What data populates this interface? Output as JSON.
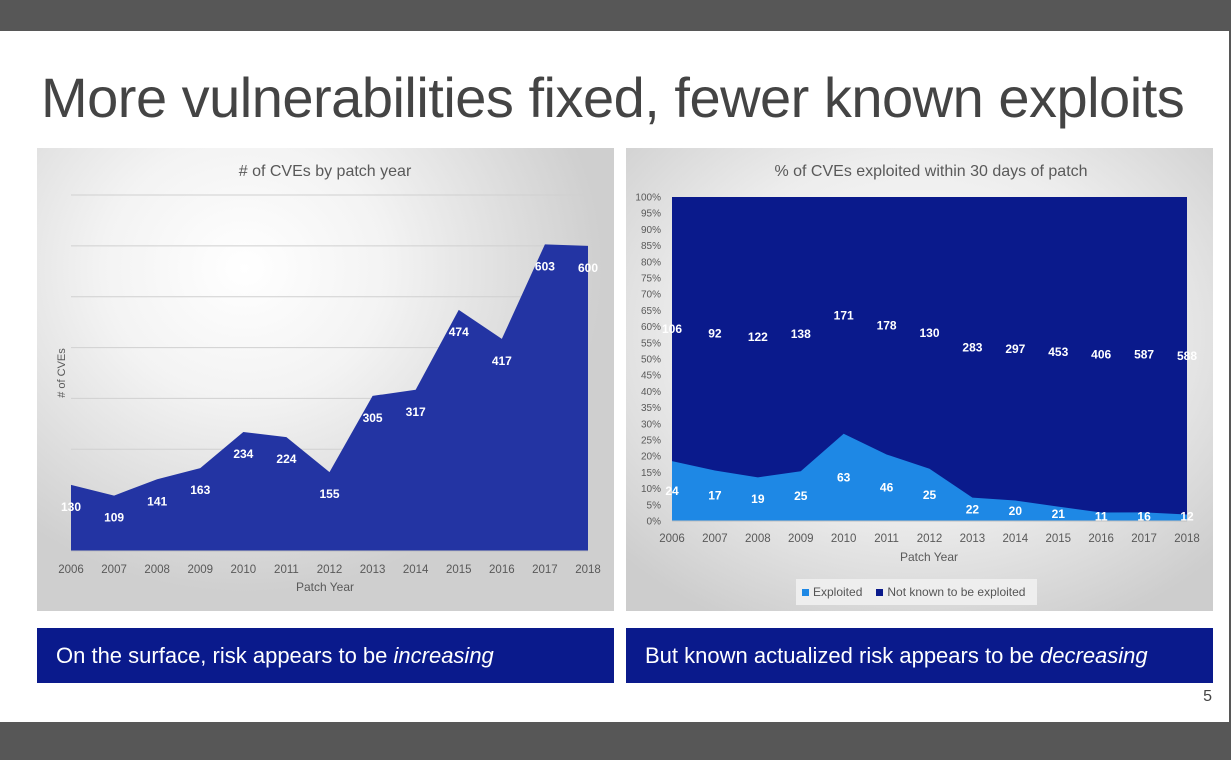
{
  "slide": {
    "title": "More vulnerabilities fixed, fewer known exploits",
    "page_number": "5",
    "caption_left": {
      "text": "On the surface, risk appears to be ",
      "emphasis": "increasing"
    },
    "caption_right": {
      "text": "But known actualized risk appears to be ",
      "emphasis": "decreasing"
    }
  },
  "chart_data": [
    {
      "type": "area",
      "title": "# of CVEs by patch year",
      "xlabel": "Patch Year",
      "ylabel": "# of CVEs",
      "categories": [
        "2006",
        "2007",
        "2008",
        "2009",
        "2010",
        "2011",
        "2012",
        "2013",
        "2014",
        "2015",
        "2016",
        "2017",
        "2018"
      ],
      "series": [
        {
          "values": [
            130,
            109,
            141,
            163,
            234,
            224,
            155,
            305,
            317,
            474,
            417,
            603,
            600
          ],
          "color": "#2334a3"
        }
      ],
      "ylim": [
        0,
        700
      ],
      "grid": true,
      "data_labels": true
    },
    {
      "type": "area",
      "stacked_percent": true,
      "title": "% of CVEs exploited within 30 days of patch",
      "xlabel": "Patch Year",
      "categories": [
        "2006",
        "2007",
        "2008",
        "2009",
        "2010",
        "2011",
        "2012",
        "2013",
        "2014",
        "2015",
        "2016",
        "2017",
        "2018"
      ],
      "y_ticks": [
        "0%",
        "5%",
        "10%",
        "15%",
        "20%",
        "25%",
        "30%",
        "35%",
        "40%",
        "45%",
        "50%",
        "55%",
        "60%",
        "65%",
        "70%",
        "75%",
        "80%",
        "85%",
        "90%",
        "95%",
        "100%"
      ],
      "ylim": [
        0,
        100
      ],
      "legend_position": "bottom",
      "series": [
        {
          "name": "Exploited",
          "values": [
            24,
            17,
            19,
            25,
            63,
            46,
            25,
            22,
            20,
            21,
            11,
            16,
            12
          ],
          "color": "#1e88e5"
        },
        {
          "name": "Not known to be exploited",
          "values": [
            106,
            92,
            122,
            138,
            171,
            178,
            130,
            283,
            297,
            453,
            406,
            587,
            588
          ],
          "color": "#0a1a8c"
        }
      ]
    }
  ]
}
